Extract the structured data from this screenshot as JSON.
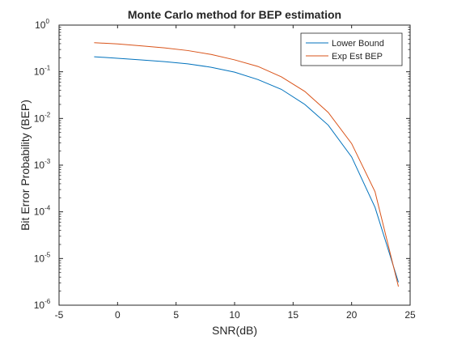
{
  "chart_data": {
    "type": "line",
    "title": "Monte Carlo method for BEP estimation",
    "xlabel": "SNR(dB)",
    "ylabel": "Bit Error Probability (BEP)",
    "xlim": [
      -5,
      25
    ],
    "ylim": [
      1e-06,
      1
    ],
    "yscale": "log",
    "x_ticks": [
      -5,
      0,
      5,
      10,
      15,
      20,
      25
    ],
    "y_ticks": [
      {
        "base": "10",
        "exp": "0",
        "value": 1
      },
      {
        "base": "10",
        "exp": "-1",
        "value": 0.1
      },
      {
        "base": "10",
        "exp": "-2",
        "value": 0.01
      },
      {
        "base": "10",
        "exp": "-3",
        "value": 0.001
      },
      {
        "base": "10",
        "exp": "-4",
        "value": 0.0001
      },
      {
        "base": "10",
        "exp": "-5",
        "value": 1e-05
      },
      {
        "base": "10",
        "exp": "-6",
        "value": 1e-06
      }
    ],
    "grid": false,
    "legend_position": "top-right",
    "series": [
      {
        "name": "Lower Bound",
        "color": "#0072BD",
        "x": [
          -2,
          0,
          2,
          4,
          6,
          8,
          10,
          12,
          14,
          16,
          18,
          20,
          22,
          24
        ],
        "y": [
          0.21,
          0.195,
          0.18,
          0.165,
          0.148,
          0.125,
          0.098,
          0.068,
          0.042,
          0.02,
          0.0072,
          0.0015,
          0.000125,
          3.1e-06
        ]
      },
      {
        "name": "Exp Est BEP",
        "color": "#D95319",
        "x": [
          -2,
          0,
          2,
          4,
          6,
          8,
          10,
          12,
          14,
          16,
          18,
          20,
          22,
          24
        ],
        "y": [
          0.42,
          0.395,
          0.36,
          0.325,
          0.285,
          0.235,
          0.18,
          0.13,
          0.078,
          0.038,
          0.0135,
          0.0029,
          0.00027,
          2.5e-06
        ]
      }
    ]
  }
}
